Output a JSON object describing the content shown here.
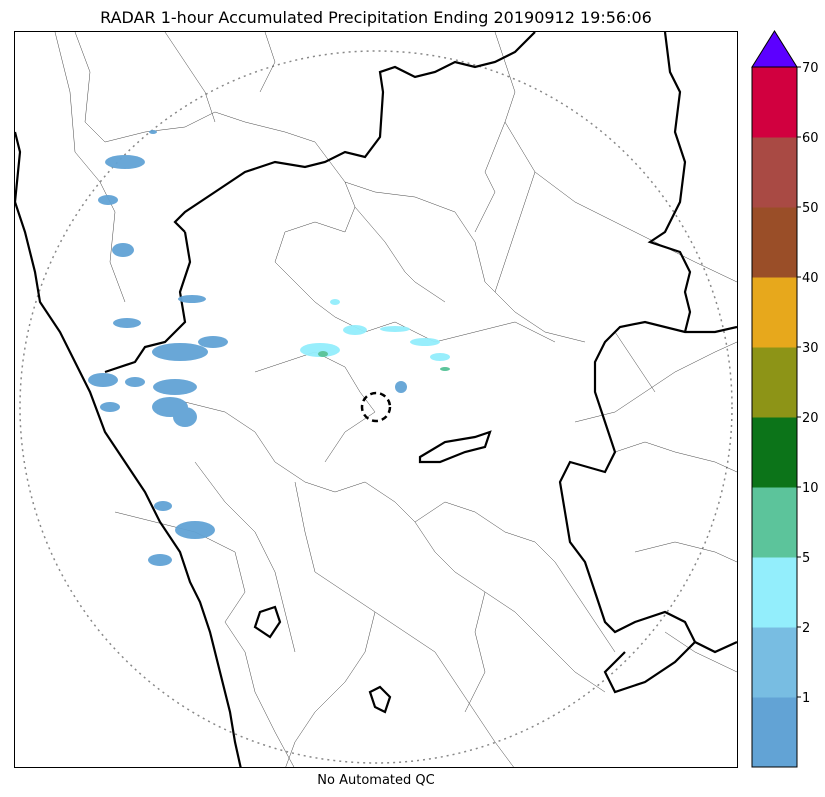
{
  "title": "RADAR 1-hour Accumulated Precipitation Ending 20190912 19:56:06",
  "footer": "No Automated QC",
  "icons": {
    "radar_site": "radar-site-dashed-circle-icon",
    "overflow": "triangle-up-icon"
  },
  "colorbar": {
    "bins": [
      {
        "lower": 0,
        "upper": 1,
        "color": "#62a3d5"
      },
      {
        "lower": 1,
        "upper": 2,
        "color": "#78bde2"
      },
      {
        "lower": 2,
        "upper": 5,
        "color": "#93eefc"
      },
      {
        "lower": 5,
        "upper": 10,
        "color": "#5cc49b"
      },
      {
        "lower": 10,
        "upper": 20,
        "color": "#0c7419"
      },
      {
        "lower": 20,
        "upper": 30,
        "color": "#8d9417"
      },
      {
        "lower": 30,
        "upper": 40,
        "color": "#e7a81c"
      },
      {
        "lower": 40,
        "upper": 50,
        "color": "#9a4e28"
      },
      {
        "lower": 50,
        "upper": 60,
        "color": "#a94a44"
      },
      {
        "lower": 60,
        "upper": 70,
        "color": "#d1003f"
      }
    ],
    "overflow_color": "#5c00ff",
    "ticks": [
      "1",
      "2",
      "5",
      "10",
      "20",
      "30",
      "40",
      "50",
      "60",
      "70"
    ]
  }
}
